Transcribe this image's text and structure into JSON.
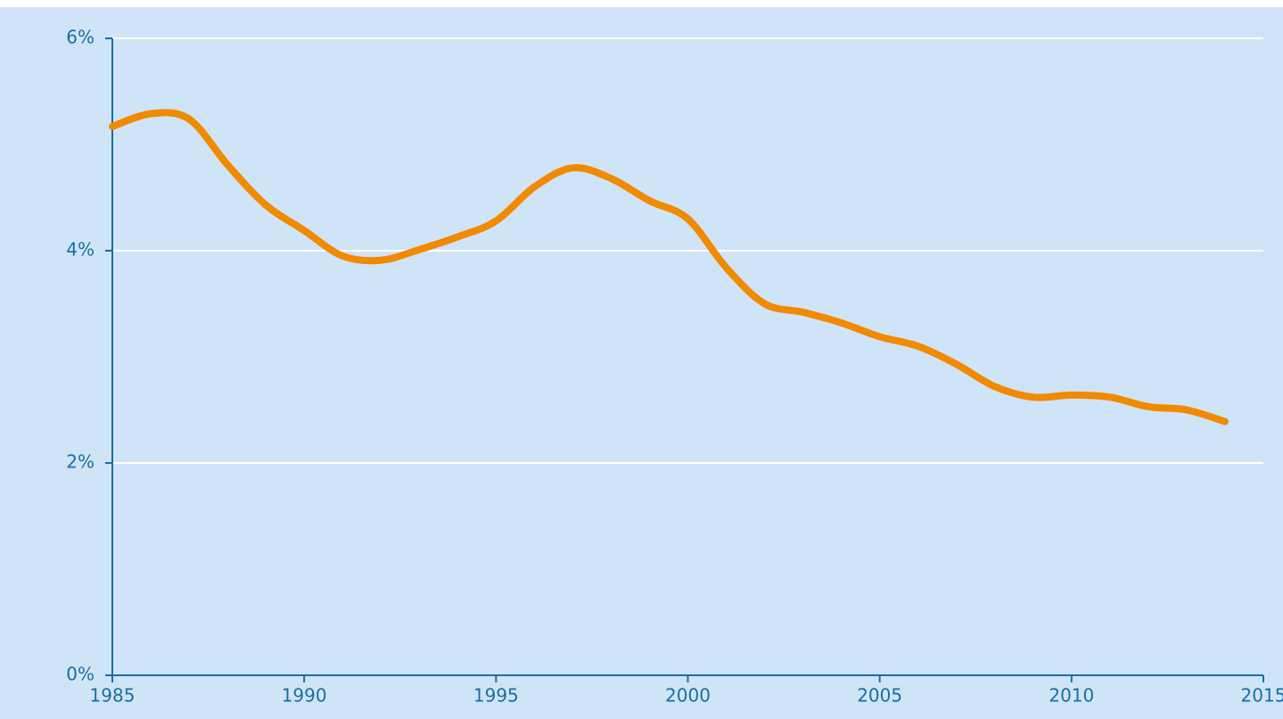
{
  "chart_data": {
    "type": "line",
    "x": [
      1985,
      1986,
      1987,
      1988,
      1989,
      1990,
      1991,
      1992,
      1993,
      1994,
      1995,
      1996,
      1997,
      1998,
      1999,
      2000,
      2001,
      2002,
      2003,
      2004,
      2005,
      2006,
      2007,
      2008,
      2009,
      2010,
      2011,
      2012,
      2013,
      2014
    ],
    "series": [
      {
        "color": "#f08a00",
        "values": [
          5.17,
          5.29,
          5.24,
          4.81,
          4.43,
          4.19,
          3.95,
          3.91,
          4.01,
          4.13,
          4.28,
          4.6,
          4.78,
          4.68,
          4.47,
          4.3,
          3.84,
          3.5,
          3.42,
          3.32,
          3.19,
          3.1,
          2.93,
          2.72,
          2.62,
          2.64,
          2.62,
          2.53,
          2.5,
          2.39
        ]
      }
    ],
    "xlim": [
      1985,
      2015
    ],
    "xticks": [
      1985,
      1990,
      1995,
      2000,
      2005,
      2010,
      2015
    ],
    "ylim": [
      0,
      6
    ],
    "yticks": [
      {
        "value": 0,
        "label": "0%"
      },
      {
        "value": 2,
        "label": "2%"
      },
      {
        "value": 4,
        "label": "4%"
      },
      {
        "value": 6,
        "label": "6%"
      }
    ],
    "grid": true
  }
}
